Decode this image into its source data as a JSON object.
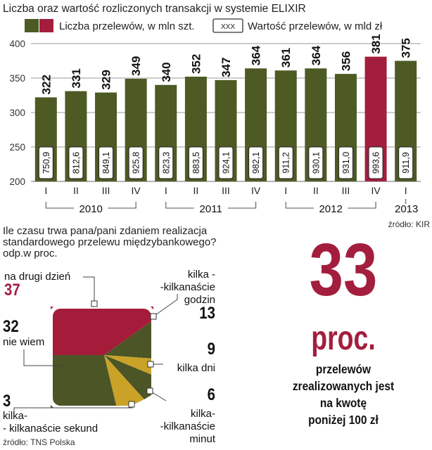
{
  "colors": {
    "olive": "#4d5a24",
    "crimson": "#a31e3e",
    "gold": "#c9a227",
    "pie_crimson": "#a51c3a",
    "pie_olive": "#4b5526",
    "highlight": "#a31e3e"
  },
  "chart_data": [
    {
      "type": "bar",
      "title": "Liczba oraz wartość rozliczonych transakcji w systemie ELIXIR",
      "legend": {
        "count_label": "Liczba przelewów, w mln szt.",
        "value_label": "Wartość przelewów, w mld zł",
        "value_swatch": "XXX",
        "placement": "top"
      },
      "categories": [
        "I",
        "II",
        "III",
        "IV",
        "I",
        "II",
        "III",
        "IV",
        "I",
        "II",
        "III",
        "IV",
        "I"
      ],
      "years": [
        {
          "label": "2010",
          "span": [
            0,
            3
          ]
        },
        {
          "label": "2011",
          "span": [
            4,
            7
          ]
        },
        {
          "label": "2012",
          "span": [
            8,
            11
          ]
        },
        {
          "label": "2013",
          "span": [
            12,
            12
          ]
        }
      ],
      "series": [
        {
          "name": "Liczba przelewów, w mln szt.",
          "values": [
            322,
            331,
            329,
            349,
            340,
            352,
            347,
            364,
            361,
            364,
            356,
            381,
            375
          ]
        },
        {
          "name": "Wartość przelewów, w mld zł",
          "values": [
            "750,9",
            "812,6",
            "849,1",
            "925,8",
            "823,3",
            "883,5",
            "924,1",
            "982,1",
            "911,2",
            "930,1",
            "931,0",
            "993,6",
            "911,9"
          ]
        }
      ],
      "highlight_index": 11,
      "yticks": [
        200,
        250,
        300,
        350,
        400
      ],
      "ylim": [
        200,
        400
      ],
      "grid": true,
      "source": "źródło: KIR"
    },
    {
      "type": "pie",
      "title": "Ile czasu trwa pana/pani zdaniem realizacja standardowego przelewu międzybankowego? odp.w proc.",
      "slices": [
        {
          "label_lines": [
            "na drugi dzień"
          ],
          "value": 37,
          "color": "crimson",
          "highlight": true
        },
        {
          "label_lines": [
            "kilka -",
            "-kilkanaście",
            "godzin"
          ],
          "value": 13,
          "color": "olive"
        },
        {
          "label_lines": [
            "kilka dni"
          ],
          "value": 9,
          "color": "gold"
        },
        {
          "label_lines": [
            "kilka-",
            "-kilkanaście",
            "minut"
          ],
          "value": 6,
          "color": "olive"
        },
        {
          "label_lines": [
            "kilka-",
            "- kilkanaście sekund"
          ],
          "value": 3,
          "color": "gold"
        },
        {
          "label_lines": [
            "nie wiem"
          ],
          "value": 32,
          "color": "olive"
        }
      ],
      "source": "źródło: TNS Polska"
    }
  ],
  "callout": {
    "big_number": "33",
    "unit": "proc.",
    "text_lines": [
      "przelewów",
      "zrealizowanych jest",
      "na kwotę",
      "poniżej 100 zł"
    ]
  }
}
